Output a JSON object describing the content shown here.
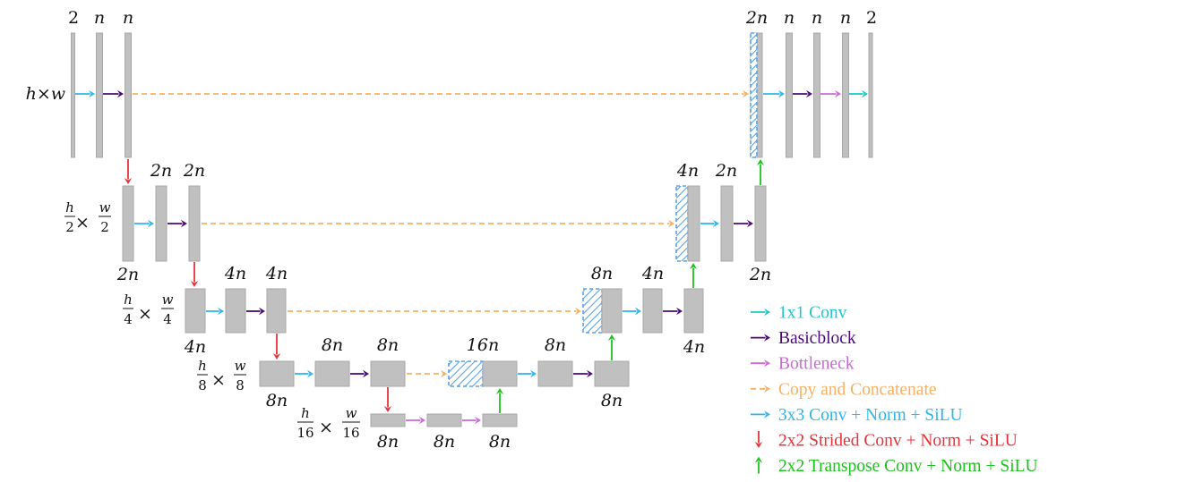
{
  "labels": {
    "L1_in": "2",
    "L1_c1": "n",
    "L1_c2": "n",
    "R1_cat": "2n",
    "R1_c1": "n",
    "R1_c2": "n",
    "R1_c3": "n",
    "R1_out": "2",
    "L2_a": "2n",
    "L2_b": "2n",
    "L2_c": "2n",
    "R2_cat": "4n",
    "R2_b": "2n",
    "R2_c": "2n",
    "L3_a": "4n",
    "L3_b": "4n",
    "L3_c": "4n",
    "R3_cat": "8n",
    "R3_b": "4n",
    "R3_c": "4n",
    "L4_a": "8n",
    "L4_b": "8n",
    "L4_c": "8n",
    "M4_cat": "16n",
    "R4_b": "8n",
    "R4_c": "8n",
    "L5_a": "8n",
    "L5_b": "8n",
    "L5_c": "8n"
  },
  "resolutions": {
    "r1": "h×w",
    "r2": "h/2 × w/2",
    "r3": "h/4 × w/4",
    "r4": "h/8 × w/8",
    "r5": "h/16 × w/16"
  },
  "legend": [
    {
      "label": "1x1 Conv",
      "color": "#1fc8c8",
      "dir": "right",
      "dashed": false
    },
    {
      "label": "Basicblock",
      "color": "#4b0a7a",
      "dir": "right",
      "dashed": false
    },
    {
      "label": "Bottleneck",
      "color": "#cc6ad8",
      "dir": "right",
      "dashed": false
    },
    {
      "label": "Copy and Concatenate",
      "color": "#f7b065",
      "dir": "right",
      "dashed": true
    },
    {
      "label": "3x3 Conv + Norm + SiLU",
      "color": "#2fb6ee",
      "dir": "right",
      "dashed": false
    },
    {
      "label": "2x2 Strided Conv + Norm + SiLU",
      "color": "#e8323a",
      "dir": "down",
      "dashed": false
    },
    {
      "label": "2x2 Transpose Conv + Norm + SiLU",
      "color": "#1ec21e",
      "dir": "up",
      "dashed": false
    }
  ],
  "colors": {
    "conv1x1": "#1fc8c8",
    "basicblock": "#4b0a7a",
    "bottleneck": "#cc6ad8",
    "copy_concat": "#f7b065",
    "conv3x3": "#2fb6ee",
    "strided": "#e8323a",
    "transpose": "#1ec21e",
    "block": "#c0c0c0"
  }
}
